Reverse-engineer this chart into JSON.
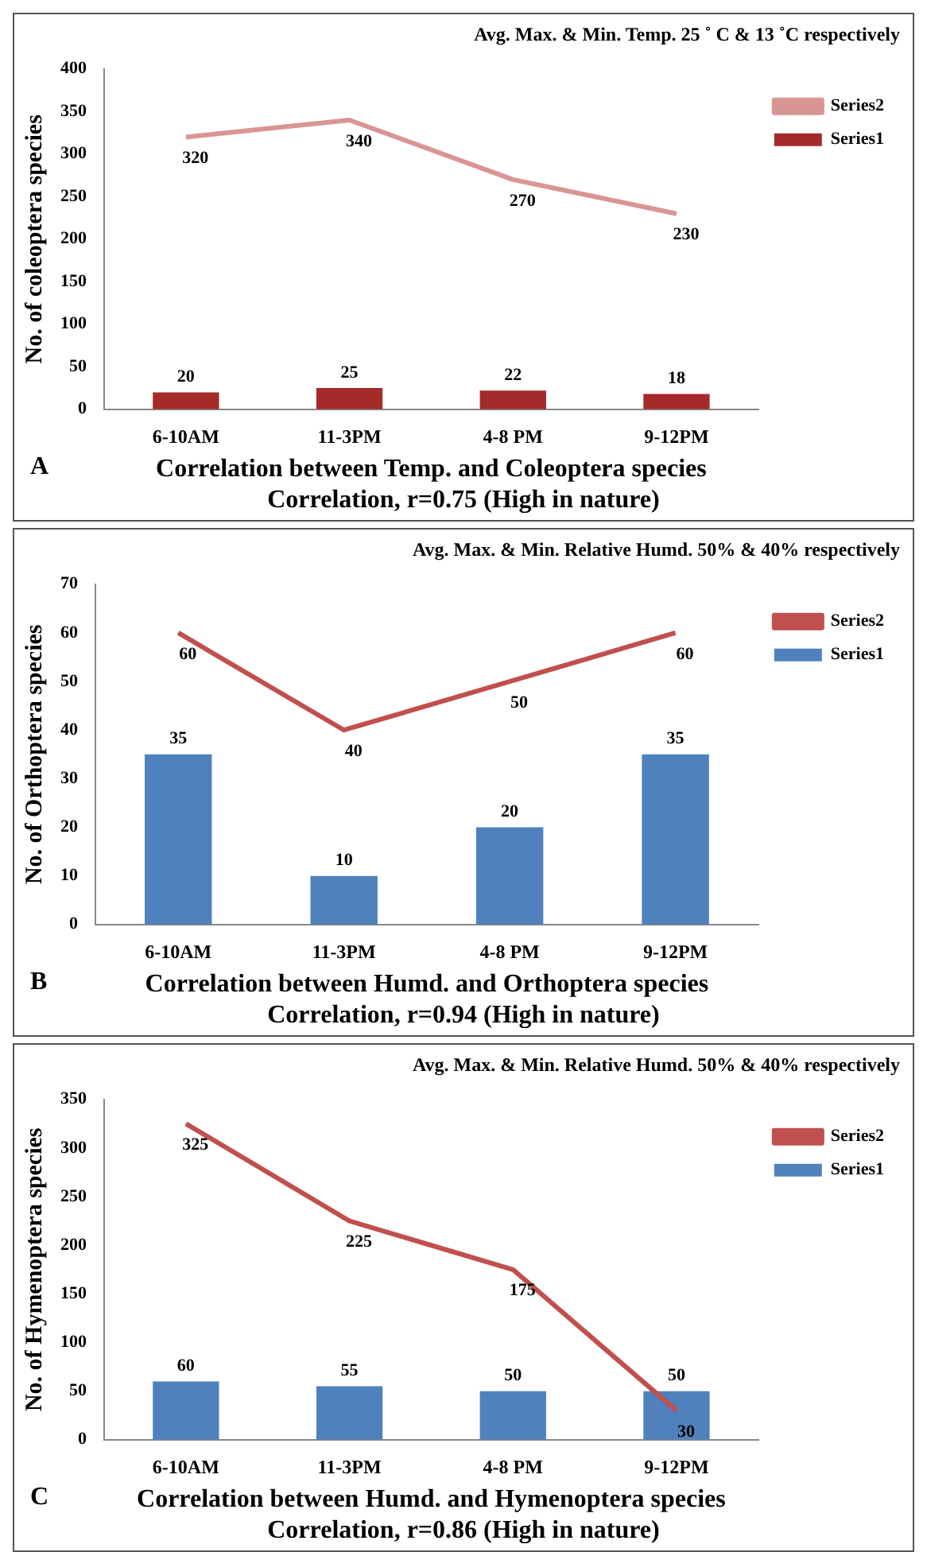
{
  "chart_data": [
    {
      "type": "bar",
      "title": "Avg. Max. & Min. Temp. 25 ˚ C & 13 ˚C respectively",
      "xlabel": "Correlation between Temp. and Coleoptera species",
      "ylabel": "No. of coleoptera species",
      "annotations": [
        "A",
        "Correlation, r=0.75 (High in nature)"
      ],
      "categories": [
        "6-10AM",
        "11-3PM",
        "4-8 PM",
        "9-12PM"
      ],
      "series": [
        {
          "name": "Series1",
          "color": "#a52a2a",
          "values": [
            20,
            25,
            22,
            18
          ]
        },
        {
          "name": "Series2",
          "type": "line",
          "color": "#d99594",
          "values": [
            320,
            340,
            270,
            230
          ]
        }
      ],
      "ylim": [
        0,
        400
      ],
      "yticks": [
        0,
        50,
        100,
        150,
        200,
        250,
        300,
        350,
        400
      ],
      "grid": false,
      "legend": "top right",
      "data_labels": true,
      "marker": "none",
      "line_style": "solid"
    },
    {
      "type": "bar",
      "title": "Avg. Max. & Min. Relative Humd. 50% & 40% respectively",
      "xlabel": "Correlation between Humd. and Orthoptera species",
      "ylabel": "No. of Orthoptera species",
      "annotations": [
        "B",
        "Correlation, r=0.94 (High in nature)"
      ],
      "categories": [
        "6-10AM",
        "11-3PM",
        "4-8 PM",
        "9-12PM"
      ],
      "series": [
        {
          "name": "Series1",
          "color": "#4f81bd",
          "values": [
            35,
            10,
            20,
            35
          ]
        },
        {
          "name": "Series2",
          "type": "line",
          "color": "#c0504d",
          "values": [
            60,
            40,
            50,
            60
          ]
        }
      ],
      "ylim": [
        0,
        70
      ],
      "yticks": [
        0,
        10,
        20,
        30,
        40,
        50,
        60,
        70
      ],
      "grid": false,
      "legend": "top right",
      "data_labels": true,
      "marker": "none",
      "line_style": "solid"
    },
    {
      "type": "bar",
      "title": "Avg. Max. & Min. Relative Humd. 50% & 40% respectively",
      "xlabel": "Correlation between Humd. and Hymenoptera species",
      "ylabel": "No. of Hymenoptera species",
      "annotations": [
        "C",
        "Correlation, r=0.86 (High in nature)"
      ],
      "categories": [
        "6-10AM",
        "11-3PM",
        "4-8 PM",
        "9-12PM"
      ],
      "series": [
        {
          "name": "Series1",
          "color": "#4f81bd",
          "values": [
            60,
            55,
            50,
            50
          ]
        },
        {
          "name": "Series2",
          "type": "line",
          "color": "#c0504d",
          "values": [
            325,
            225,
            175,
            30
          ]
        }
      ],
      "ylim": [
        0,
        350
      ],
      "yticks": [
        0,
        50,
        100,
        150,
        200,
        250,
        300,
        350
      ],
      "grid": false,
      "legend": "top right",
      "data_labels": true,
      "marker": "none",
      "line_style": "solid"
    }
  ]
}
